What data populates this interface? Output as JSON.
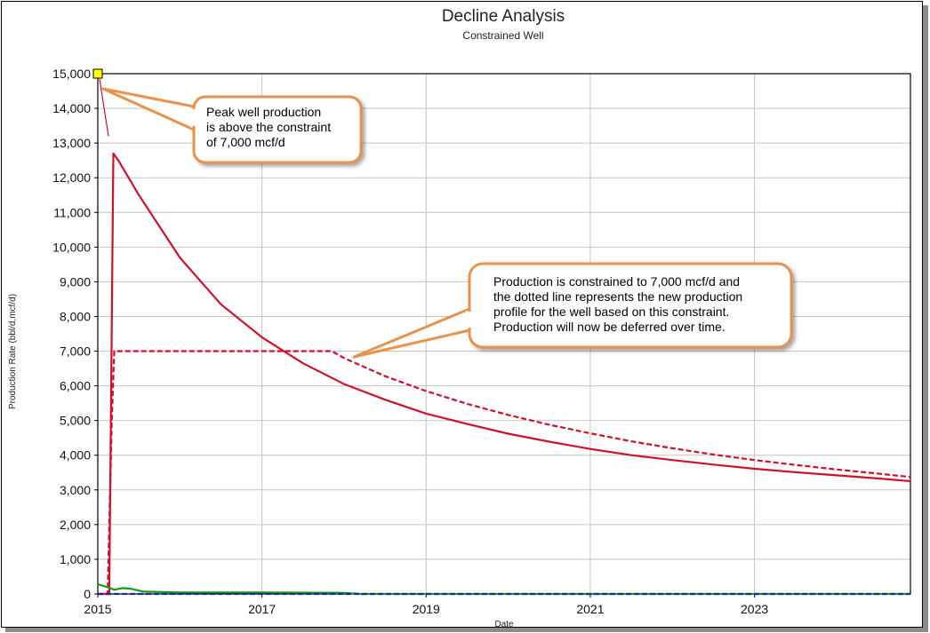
{
  "chart_data": {
    "type": "line",
    "title": "Decline Analysis",
    "subtitle": "Constrained Well",
    "xlabel": "Date",
    "ylabel": "Production Rate (bbl/d,mcf/d)",
    "xlim": [
      2015,
      2024.9
    ],
    "ylim": [
      0,
      15000
    ],
    "x_ticks": [
      2015,
      2017,
      2019,
      2021,
      2023
    ],
    "x_tick_labels": [
      "2015",
      "2017",
      "2019",
      "2021",
      "2023"
    ],
    "y_ticks": [
      0,
      1000,
      2000,
      3000,
      4000,
      5000,
      6000,
      7000,
      8000,
      9000,
      10000,
      11000,
      12000,
      13000,
      14000,
      15000
    ],
    "y_tick_labels": [
      "0",
      "1,000",
      "2,000",
      "3,000",
      "4,000",
      "5,000",
      "6,000",
      "7,000",
      "8,000",
      "9,000",
      "10,000",
      "11,000",
      "12,000",
      "13,000",
      "14,000",
      "15,000"
    ],
    "grid": true,
    "series": [
      {
        "style": "solid",
        "color": "#d0112b",
        "x": [
          2015.0,
          2015.14,
          2015.19,
          2015.25,
          2015.5,
          2016.0,
          2016.5,
          2017.0,
          2017.5,
          2018.0,
          2018.5,
          2019.0,
          2019.5,
          2020.0,
          2020.5,
          2021.0,
          2021.5,
          2022.0,
          2022.5,
          2023.0,
          2023.5,
          2024.0,
          2024.5,
          2024.9
        ],
        "y": [
          0,
          0,
          12700,
          12500,
          11500,
          9700,
          8350,
          7400,
          6650,
          6050,
          5600,
          5200,
          4900,
          4620,
          4390,
          4180,
          4000,
          3860,
          3730,
          3610,
          3510,
          3420,
          3330,
          3250
        ]
      },
      {
        "style": "dashed",
        "color": "#d0112b",
        "x": [
          2015.0,
          2015.12,
          2015.17,
          2015.2,
          2015.25,
          2016.0,
          2017.0,
          2017.85,
          2018.0,
          2018.5,
          2019.0,
          2019.5,
          2020.0,
          2020.5,
          2021.0,
          2021.5,
          2022.0,
          2022.5,
          2023.0,
          2023.5,
          2024.0,
          2024.5,
          2024.9
        ],
        "y": [
          0,
          0,
          5000,
          7000,
          7000,
          7000,
          7000,
          7000,
          6800,
          6280,
          5850,
          5480,
          5160,
          4880,
          4630,
          4400,
          4200,
          4020,
          3860,
          3720,
          3590,
          3470,
          3370
        ]
      },
      {
        "style": "solid",
        "color": "#119922",
        "x": [
          2015.0,
          2015.14,
          2015.2,
          2015.3,
          2015.4,
          2015.55,
          2016.0,
          2017.0,
          2018.0,
          2018.2,
          2024.9
        ],
        "y": [
          280,
          180,
          120,
          170,
          150,
          70,
          40,
          40,
          30,
          0,
          0
        ]
      },
      {
        "style": "dashed",
        "color": "#1a2a99",
        "x": [
          2015.0,
          2024.9
        ],
        "y": [
          0,
          0
        ]
      }
    ],
    "annotations": [
      {
        "lines": [
          "Peak well production",
          "is above the constraint",
          "of 7,000 mcf/d"
        ]
      },
      {
        "lines": [
          "Production is constrained to 7,000 mcf/d and",
          "the dotted line represents the new production",
          "profile for the well based on this constraint.",
          "Production will now be deferred over time."
        ]
      }
    ],
    "marker": {
      "x": 2015.0,
      "y": 15000,
      "color": "#ffff00"
    }
  }
}
